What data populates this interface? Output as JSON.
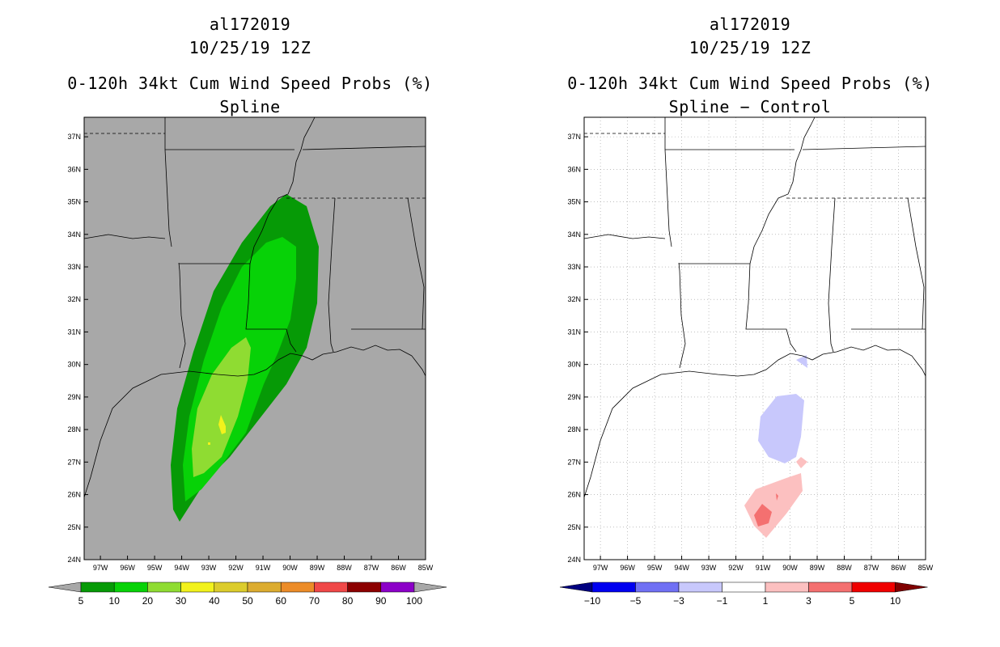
{
  "left_panel": {
    "storm_id": "al172019",
    "datetime": "10/25/19 12Z",
    "product_title": "0-120h 34kt Cum Wind Speed Probs (%)",
    "subtitle": "Spline"
  },
  "right_panel": {
    "storm_id": "al172019",
    "datetime": "10/25/19 12Z",
    "product_title": "0-120h 34kt Cum Wind Speed Probs (%)",
    "subtitle": "Spline − Control"
  },
  "map": {
    "lat_labels": [
      "37N",
      "36N",
      "35N",
      "34N",
      "33N",
      "32N",
      "31N",
      "30N",
      "29N",
      "28N",
      "27N",
      "26N",
      "25N",
      "24N"
    ],
    "lon_labels": [
      "97W",
      "96W",
      "95W",
      "94W",
      "93W",
      "92W",
      "91W",
      "90W",
      "89W",
      "88W",
      "87W",
      "86W",
      "85W"
    ],
    "lat_range": [
      24,
      37.6
    ],
    "lon_range": [
      97.6,
      85
    ]
  },
  "left_colorbar": {
    "labels": [
      "5",
      "10",
      "20",
      "30",
      "40",
      "50",
      "60",
      "70",
      "80",
      "90",
      "100"
    ],
    "colors": [
      "#069a06",
      "#07d207",
      "#8fdc32",
      "#f2f21c",
      "#dccc2c",
      "#dcac30",
      "#ec8c28",
      "#f04848",
      "#8c0000",
      "#8c00c8"
    ],
    "under_color": "#a8a8a8",
    "over_color": "#a8a8a8"
  },
  "right_colorbar": {
    "labels": [
      "−10",
      "−5",
      "−3",
      "−1",
      "1",
      "3",
      "5",
      "10"
    ],
    "colors": [
      "#0000f0",
      "#7070f4",
      "#c8c8fc",
      "#ffffff",
      "#fcc0c0",
      "#f47070",
      "#f00000"
    ],
    "under_color": "#000080",
    "over_color": "#800000"
  },
  "colors": {
    "ocean_gray": "#a8a8a8",
    "diff_background": "#ffffff",
    "prob_5": "#069a06",
    "prob_10": "#07d207",
    "prob_20": "#8fdc32",
    "prob_30": "#f2f21c",
    "neg_small": "#c8c8fc",
    "pos_small": "#fcc0c0",
    "pos_mid": "#f47070"
  }
}
